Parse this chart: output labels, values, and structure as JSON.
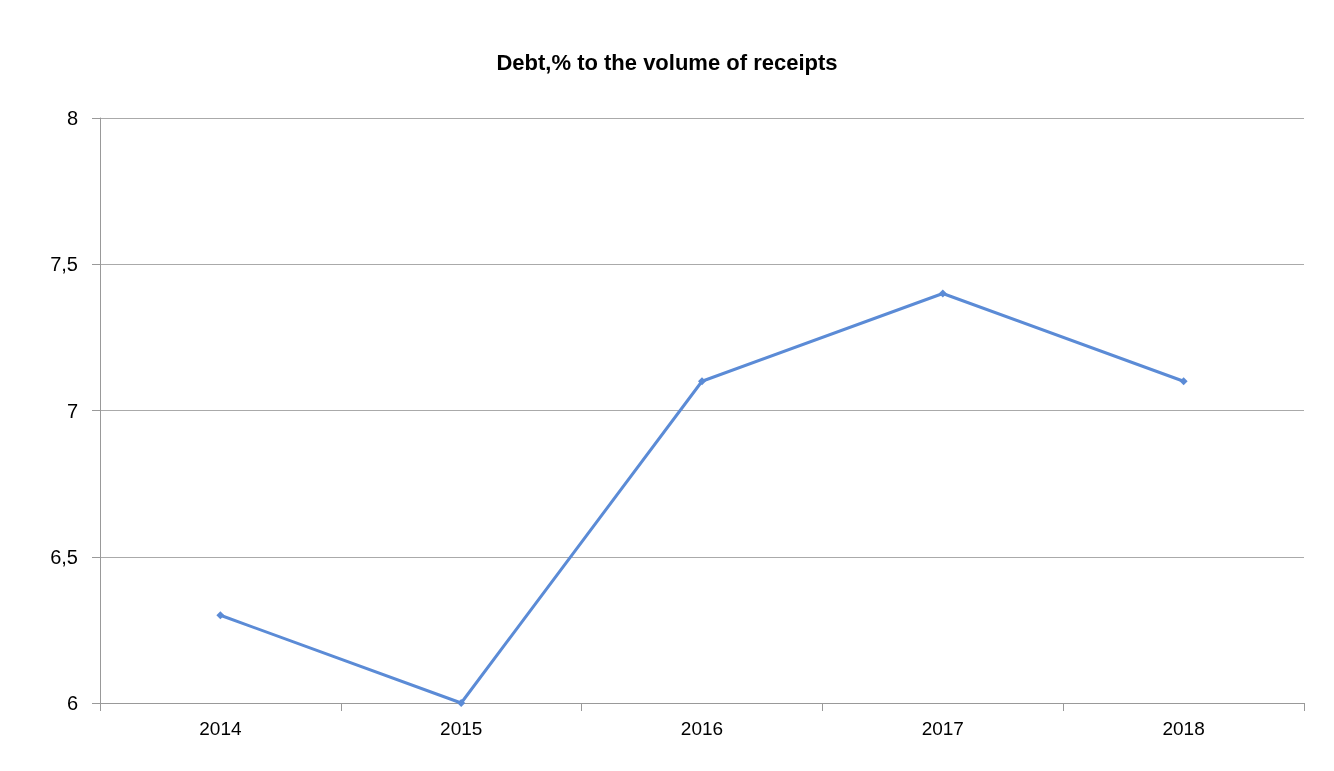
{
  "chart_data": {
    "type": "line",
    "title": "Debt,% to the volume of receipts",
    "categories": [
      "2014",
      "2015",
      "2016",
      "2017",
      "2018"
    ],
    "series": [
      {
        "color": "#5b8bd6",
        "values": [
          6.3,
          6.0,
          7.1,
          7.4,
          7.1
        ]
      }
    ],
    "ylim": [
      6,
      8
    ],
    "yticks": [
      6,
      {
        "value": 6.5,
        "label": "6,5"
      },
      7,
      {
        "value": 7.5,
        "label": "7,5"
      },
      8
    ],
    "grid": "y",
    "marker": "diamond",
    "line_style": "solid"
  }
}
